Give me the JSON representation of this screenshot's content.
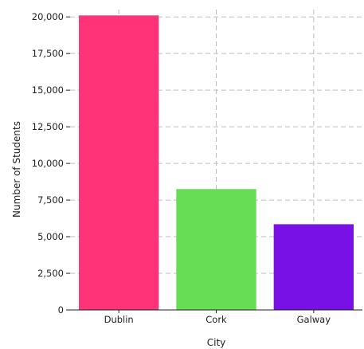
{
  "chart_data": {
    "type": "bar",
    "title": "",
    "xlabel": "City",
    "ylabel": "Number of Students",
    "categories": [
      "Dublin",
      "Cork",
      "Galway"
    ],
    "values": [
      20100,
      8250,
      5850
    ],
    "colors": [
      "#ff3377",
      "#66dd55",
      "#7711e6"
    ],
    "ylim": [
      0,
      20500
    ],
    "yticks": [
      0,
      2500,
      5000,
      7500,
      10000,
      12500,
      15000,
      17500,
      20000
    ],
    "ytick_labels": [
      "0",
      "2,500",
      "5,000",
      "7,500",
      "10,000",
      "12,500",
      "15,000",
      "17,500",
      "20,000"
    ],
    "grid": true,
    "legend": "none"
  }
}
